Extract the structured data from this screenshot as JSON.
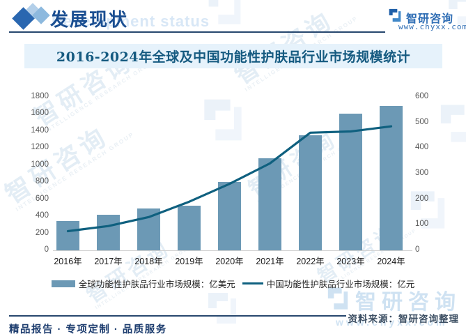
{
  "header": {
    "section_title": "发展现状",
    "section_title_en": "Development status",
    "brand_name": "智研咨询",
    "brand_site": "www.chyxx.com"
  },
  "chart_title": "2016-2024年全球及中国功能性护肤品行业市场规模统计",
  "chart_data": {
    "type": "bar+line",
    "title": "2016-2024年全球及中国功能性护肤品行业市场规模统计",
    "categories": [
      "2016年",
      "2017年",
      "2018年",
      "2019年",
      "2020年",
      "2021年",
      "2022年",
      "2023年",
      "2024年"
    ],
    "series": [
      {
        "name": "全球功能性护肤品行业市场规模：亿美元",
        "type": "bar",
        "axis": "left",
        "color": "#6c99b5",
        "values": [
          345,
          415,
          495,
          520,
          800,
          1080,
          1350,
          1600,
          1690
        ]
      },
      {
        "name": "中国功能性护肤品行业市场规模：亿元",
        "type": "line",
        "axis": "right",
        "color": "#0f607f",
        "values": [
          75,
          95,
          130,
          190,
          260,
          340,
          460,
          465,
          485
        ]
      }
    ],
    "left_axis": {
      "min": 0,
      "max": 1800,
      "step": 200,
      "ticks": [
        0,
        200,
        400,
        600,
        800,
        1000,
        1200,
        1400,
        1600,
        1800
      ]
    },
    "right_axis": {
      "min": 0,
      "max": 600,
      "step": 100,
      "ticks": [
        0,
        100,
        200,
        300,
        400,
        500,
        600
      ]
    },
    "grid": false,
    "legend_position": "bottom"
  },
  "watermarks": {
    "cn": "智研咨询",
    "en": "INTELLIGENCE RESEARCH GROUP",
    "site": "www.chyxx.com"
  },
  "footer": {
    "source": "资料来源：智研咨询整理",
    "tagline": "精品报告 · 专项定制 · 品质服务"
  },
  "colors": {
    "bar": "#6c99b5",
    "line": "#0f607f",
    "accent_blue": "#2e6db4",
    "header_text": "#1a4e91",
    "title_text": "#155a80",
    "title_band_bg": "#e6f2fb",
    "navy_rule": "#27476e",
    "axis_text": "#595959",
    "footer_text": "#1c3c6e",
    "source_text": "#3d4f63",
    "watermark_light": "#dce9f5"
  }
}
